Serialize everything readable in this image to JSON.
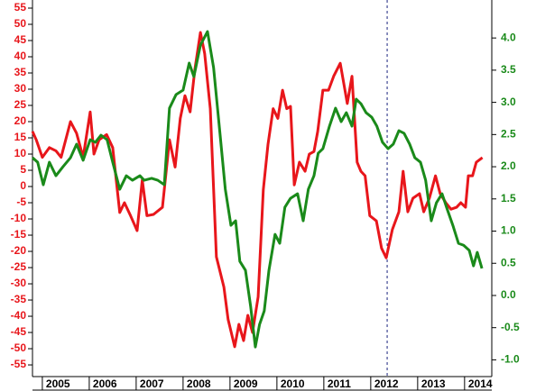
{
  "chart_data": {
    "type": "line",
    "xlim": [
      2004.79,
      2014.58
    ],
    "xticks": [
      2005,
      2006,
      2007,
      2008,
      2009,
      2010,
      2011,
      2012,
      2013,
      2014
    ],
    "ylim": [
      -58.6,
      57.5
    ],
    "yticks": [
      -55,
      -50,
      -45,
      -40,
      -35,
      -30,
      -25,
      -20,
      -15,
      -10,
      -5,
      0,
      5,
      10,
      15,
      20,
      25,
      30,
      35,
      40,
      45,
      50,
      55
    ],
    "y2lim": [
      -1.26,
      4.59
    ],
    "y2ticks": [
      {
        "value": -1,
        "label": "-1.0"
      },
      -0.5,
      {
        "value": 0,
        "label": "0.0"
      },
      0.5,
      {
        "value": 1,
        "label": "1.0"
      },
      1.5,
      {
        "value": 2,
        "label": "2.0"
      },
      2.5,
      {
        "value": 3,
        "label": "3.0"
      },
      3.5,
      {
        "value": 4,
        "label": "4.0"
      }
    ],
    "left_axis_color": "#e8161b",
    "right_axis_color": "#1a8a1a",
    "vline": 2012.35,
    "series": [
      {
        "color": "#e8161b",
        "x": [
          2004.79,
          2004.87,
          2005.0,
          2005.15,
          2005.29,
          2005.4,
          2005.6,
          2005.73,
          2005.87,
          2006.02,
          2006.1,
          2006.21,
          2006.37,
          2006.5,
          2006.65,
          2006.75,
          2006.88,
          2007.02,
          2007.13,
          2007.23,
          2007.37,
          2007.56,
          2007.71,
          2007.83,
          2007.94,
          2008.04,
          2008.15,
          2008.25,
          2008.37,
          2008.46,
          2008.58,
          2008.71,
          2008.87,
          2008.96,
          2009.1,
          2009.19,
          2009.29,
          2009.38,
          2009.48,
          2009.6,
          2009.71,
          2009.81,
          2009.92,
          2010.02,
          2010.12,
          2010.21,
          2010.29,
          2010.37,
          2010.48,
          2010.6,
          2010.69,
          2010.79,
          2010.87,
          2010.98,
          2011.1,
          2011.21,
          2011.35,
          2011.5,
          2011.6,
          2011.71,
          2011.79,
          2011.88,
          2011.98,
          2012.12,
          2012.23,
          2012.33,
          2012.46,
          2012.6,
          2012.69,
          2012.79,
          2012.9,
          2013.04,
          2013.13,
          2013.25,
          2013.38,
          2013.48,
          2013.6,
          2013.71,
          2013.83,
          2013.92,
          2014.02,
          2014.08,
          2014.17,
          2014.25,
          2014.38
        ],
        "values": [
          17,
          14.4,
          9,
          12,
          11,
          9,
          20,
          16.4,
          9,
          23,
          10,
          14.4,
          16,
          12,
          -8,
          -5,
          -9,
          -13.6,
          2,
          -9,
          -8.6,
          -6.4,
          14.4,
          6,
          21,
          28,
          23,
          36,
          47.5,
          41,
          24,
          -21.7,
          -31,
          -41,
          -49.4,
          -42.5,
          -47.5,
          -39.7,
          -45,
          -34,
          -1,
          13,
          24,
          21,
          29.7,
          24,
          24.7,
          0.5,
          7.5,
          4.7,
          10,
          10.8,
          17,
          29.7,
          29.7,
          34,
          38,
          25.6,
          34,
          7.5,
          4.7,
          3.3,
          -9,
          -10.6,
          -19,
          -22,
          -13.3,
          -7.8,
          4.7,
          -7.8,
          -3.6,
          -2.2,
          -7.8,
          -3.6,
          3.3,
          -2.2,
          -5,
          -7,
          -6.4,
          -5,
          -6.4,
          3.3,
          3.3,
          7.5,
          8.9
        ]
      },
      {
        "color": "#1a8a1a",
        "axis": "y2",
        "x": [
          2004.79,
          2004.9,
          2005.02,
          2005.15,
          2005.29,
          2005.44,
          2005.6,
          2005.73,
          2005.87,
          2006.02,
          2006.13,
          2006.25,
          2006.38,
          2006.5,
          2006.65,
          2006.79,
          2006.92,
          2007.08,
          2007.17,
          2007.33,
          2007.46,
          2007.6,
          2007.71,
          2007.85,
          2008.0,
          2008.13,
          2008.23,
          2008.37,
          2008.52,
          2008.65,
          2008.79,
          2008.9,
          2009.02,
          2009.12,
          2009.21,
          2009.33,
          2009.44,
          2009.54,
          2009.63,
          2009.73,
          2009.83,
          2009.96,
          2010.06,
          2010.17,
          2010.29,
          2010.44,
          2010.56,
          2010.67,
          2010.79,
          2010.88,
          2010.98,
          2011.12,
          2011.25,
          2011.37,
          2011.48,
          2011.6,
          2011.69,
          2011.79,
          2011.9,
          2012.02,
          2012.13,
          2012.25,
          2012.37,
          2012.48,
          2012.6,
          2012.71,
          2012.83,
          2012.94,
          2013.06,
          2013.17,
          2013.29,
          2013.4,
          2013.52,
          2013.63,
          2013.75,
          2013.87,
          2013.98,
          2014.1,
          2014.19,
          2014.27,
          2014.37
        ],
        "values": [
          2.14,
          2.07,
          1.72,
          2.07,
          1.86,
          2.0,
          2.14,
          2.35,
          2.1,
          2.42,
          2.38,
          2.49,
          2.42,
          2.07,
          1.65,
          1.86,
          1.79,
          1.86,
          1.79,
          1.82,
          1.79,
          1.72,
          2.91,
          3.12,
          3.19,
          3.61,
          3.4,
          3.89,
          4.1,
          3.54,
          2.49,
          1.65,
          1.09,
          1.16,
          0.53,
          0.39,
          -0.17,
          -0.8,
          -0.45,
          -0.24,
          0.39,
          0.95,
          0.81,
          1.37,
          1.51,
          1.58,
          1.16,
          1.65,
          1.86,
          2.21,
          2.28,
          2.63,
          2.91,
          2.7,
          2.84,
          2.63,
          3.05,
          2.98,
          2.84,
          2.77,
          2.63,
          2.38,
          2.28,
          2.35,
          2.56,
          2.52,
          2.35,
          2.14,
          2.07,
          1.79,
          1.16,
          1.44,
          1.58,
          1.34,
          1.09,
          0.81,
          0.78,
          0.7,
          0.46,
          0.67,
          0.42
        ]
      }
    ]
  }
}
